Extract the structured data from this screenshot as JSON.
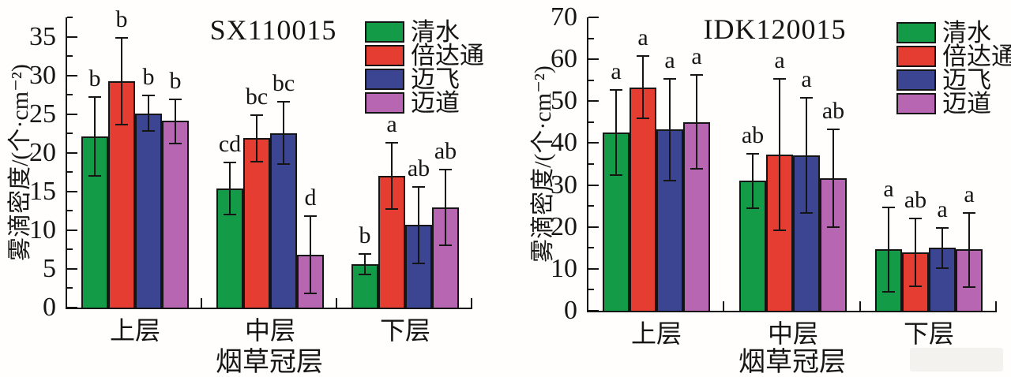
{
  "chart_data": [
    {
      "type": "bar",
      "title": "SX110015",
      "xlabel": "烟草冠层",
      "ylabel": "雾滴密度/(个·cm⁻²)",
      "categories": [
        "上层",
        "中层",
        "下层"
      ],
      "ylim": [
        0,
        37.5
      ],
      "yticks": [
        0,
        5,
        10,
        15,
        20,
        25,
        30,
        35
      ],
      "minor_tick_step": 2.5,
      "grid": false,
      "legend_position": "top-right-inside",
      "error_bars": true,
      "series": [
        {
          "name": "清水",
          "color": "#149B48",
          "values": [
            22.1,
            15.4,
            5.6
          ],
          "err_low": [
            17.0,
            12.0,
            4.3
          ],
          "err_high": [
            27.2,
            18.7,
            6.9
          ],
          "sig_letters": [
            "b",
            "cd",
            "b"
          ]
        },
        {
          "name": "倍达通",
          "color": "#E53D31",
          "values": [
            29.2,
            21.9,
            17.0
          ],
          "err_low": [
            23.6,
            18.9,
            12.7
          ],
          "err_high": [
            34.8,
            24.9,
            21.3
          ],
          "sig_letters": [
            "b",
            "bc",
            "a"
          ]
        },
        {
          "name": "迈飞",
          "color": "#3B4591",
          "values": [
            25.1,
            22.5,
            10.7
          ],
          "err_low": [
            22.8,
            18.5,
            5.7
          ],
          "err_high": [
            27.4,
            26.6,
            15.6
          ],
          "sig_letters": [
            "b",
            "bc",
            "ab"
          ]
        },
        {
          "name": "迈道",
          "color": "#B767B2",
          "values": [
            24.1,
            6.8,
            12.9
          ],
          "err_low": [
            21.2,
            1.8,
            8.0
          ],
          "err_high": [
            26.9,
            11.8,
            17.8
          ],
          "sig_letters": [
            "b",
            "d",
            "ab"
          ]
        }
      ]
    },
    {
      "type": "bar",
      "title": "IDK120015",
      "xlabel": "烟草冠层",
      "ylabel": "雾滴密度/(个·cm⁻²)",
      "categories": [
        "上层",
        "中层",
        "下层"
      ],
      "ylim": [
        0,
        70
      ],
      "yticks": [
        0,
        10,
        20,
        30,
        40,
        50,
        60,
        70
      ],
      "minor_tick_step": 5,
      "grid": false,
      "legend_position": "top-right-inside",
      "error_bars": true,
      "series": [
        {
          "name": "清水",
          "color": "#149B48",
          "values": [
            42.5,
            31.1,
            14.6
          ],
          "err_low": [
            32.4,
            24.5,
            4.5
          ],
          "err_high": [
            52.6,
            37.5,
            24.6
          ],
          "sig_letters": [
            "a",
            "ab",
            "a"
          ]
        },
        {
          "name": "倍达通",
          "color": "#E53D31",
          "values": [
            53.3,
            37.3,
            13.9
          ],
          "err_low": [
            45.9,
            19.2,
            5.8
          ],
          "err_high": [
            60.7,
            55.4,
            22.0
          ],
          "sig_letters": [
            "a",
            "a",
            "ab"
          ]
        },
        {
          "name": "迈飞",
          "color": "#3B4591",
          "values": [
            43.2,
            37.1,
            15.1
          ],
          "err_low": [
            31.0,
            23.4,
            10.2
          ],
          "err_high": [
            55.3,
            50.9,
            19.8
          ],
          "sig_letters": [
            "a",
            "a",
            "a"
          ]
        },
        {
          "name": "迈道",
          "color": "#B767B2",
          "values": [
            45.0,
            31.6,
            14.6
          ],
          "err_low": [
            33.8,
            20.0,
            5.7
          ],
          "err_high": [
            56.3,
            43.2,
            23.3
          ],
          "sig_letters": [
            "a",
            "ab",
            "a"
          ]
        }
      ]
    }
  ]
}
